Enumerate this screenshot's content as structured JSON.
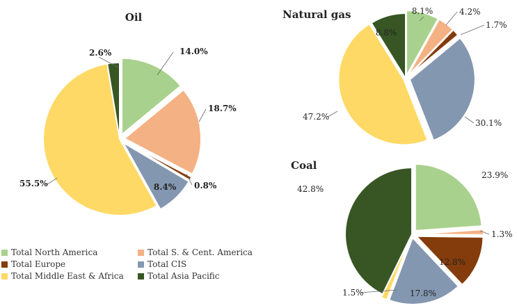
{
  "colors": {
    "north_america": "#A9D18E",
    "sc_america": "#F4B183",
    "europe": "#843C0C",
    "cis": "#8497B0",
    "middle_east_africa": "#FFD966",
    "asia_pacific": "#375623"
  },
  "legend": [
    {
      "key": "north_america",
      "label": "Total North America"
    },
    {
      "key": "sc_america",
      "label": "Total S. & Cent. America"
    },
    {
      "key": "europe",
      "label": "Total Europe"
    },
    {
      "key": "cis",
      "label": "Total CIS"
    },
    {
      "key": "middle_east_africa",
      "label": "Total Middle East &  Africa"
    },
    {
      "key": "asia_pacific",
      "label": "Total Asia Pacific"
    }
  ],
  "chart_data": [
    {
      "type": "pie",
      "title": "Oil",
      "categories": [
        "Total North America",
        "Total S. & Cent. America",
        "Total Europe",
        "Total CIS",
        "Total Middle East &  Africa",
        "Total Asia Pacific"
      ],
      "values": [
        14.0,
        18.7,
        0.8,
        8.4,
        55.5,
        2.6
      ],
      "labels": [
        "14.0%",
        "18.7%",
        "0.8%",
        "8.4%",
        "55.5%",
        "2.6%"
      ]
    },
    {
      "type": "pie",
      "title": "Natural gas",
      "categories": [
        "Total North America",
        "Total S. & Cent. America",
        "Total Europe",
        "Total CIS",
        "Total Middle East &  Africa",
        "Total Asia Pacific"
      ],
      "values": [
        8.1,
        4.2,
        1.7,
        30.1,
        47.2,
        8.8
      ],
      "labels": [
        "8.1%",
        "4.2%",
        "1.7%",
        "30.1%",
        "47.2%",
        "8.8%"
      ]
    },
    {
      "type": "pie",
      "title": "Coal",
      "categories": [
        "Total North America",
        "Total S. & Cent. America",
        "Total Europe",
        "Total CIS",
        "Total Middle East &  Africa",
        "Total Asia Pacific"
      ],
      "values": [
        23.9,
        1.3,
        12.8,
        17.8,
        1.5,
        42.8
      ],
      "labels": [
        "23.9%",
        "1.3%",
        "12.8%",
        "17.8%",
        "1.5%",
        "42.8%"
      ]
    }
  ]
}
